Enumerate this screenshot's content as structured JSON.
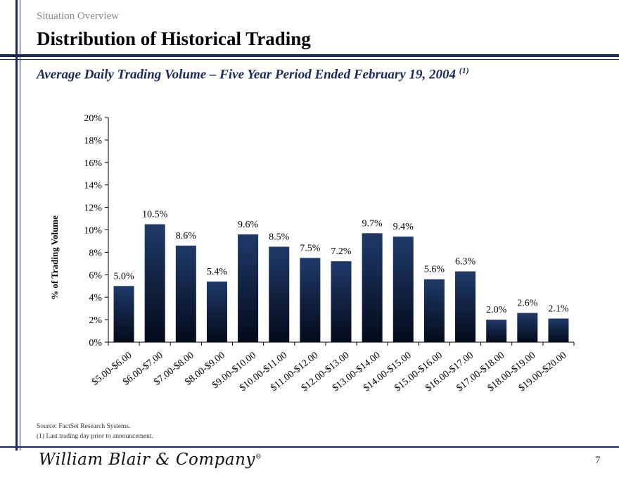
{
  "header": {
    "section": "Situation Overview",
    "title": "Distribution of Historical Trading",
    "subtitle": "Average Daily Trading Volume – Five Year Period Ended February 19, 2004",
    "subtitle_note": "(1)"
  },
  "chart_data": {
    "type": "bar",
    "title": "Average Daily Trading Volume – Five Year Period Ended February 19, 2004",
    "xlabel": "",
    "ylabel": "% of Trading Volume",
    "ylim": [
      0,
      20
    ],
    "yticks": [
      "0%",
      "2%",
      "4%",
      "6%",
      "8%",
      "10%",
      "12%",
      "14%",
      "16%",
      "18%",
      "20%"
    ],
    "grid": false,
    "categories": [
      "$5.00-$6.00",
      "$6.00-$7.00",
      "$7.00-$8.00",
      "$8.00-$9.00",
      "$9.00-$10.00",
      "$10.00-$11.00",
      "$11.00-$12.00",
      "$12.00-$13.00",
      "$13.00-$14.00",
      "$14.00-$15.00",
      "$15.00-$16.00",
      "$16.00-$17.00",
      "$17.00-$18.00",
      "$18.00-$19.00",
      "$19.00-$20.00"
    ],
    "values": [
      5.0,
      10.5,
      8.6,
      5.4,
      9.6,
      8.5,
      7.5,
      7.2,
      9.7,
      9.4,
      5.6,
      6.3,
      2.0,
      2.6,
      2.1
    ],
    "labels": [
      "5.0%",
      "10.5%",
      "8.6%",
      "5.4%",
      "9.6%",
      "8.5%",
      "7.5%",
      "7.2%",
      "9.7%",
      "9.4%",
      "5.6%",
      "6.3%",
      "2.0%",
      "2.6%",
      "2.1%"
    ],
    "colors": {
      "bar_top": "#1f3a6a",
      "bar_bottom": "#040a1a",
      "axis": "#000000"
    }
  },
  "footer": {
    "source": "Source: FactSet Research Systems.",
    "footnote": "(1) Last trading day prior to announcement.",
    "logo_text": "William Blair & Company",
    "logo_mark": "®",
    "page_number": "7"
  },
  "colors": {
    "brand": "#1a2a5e",
    "section_gray": "#8a8a8a"
  }
}
